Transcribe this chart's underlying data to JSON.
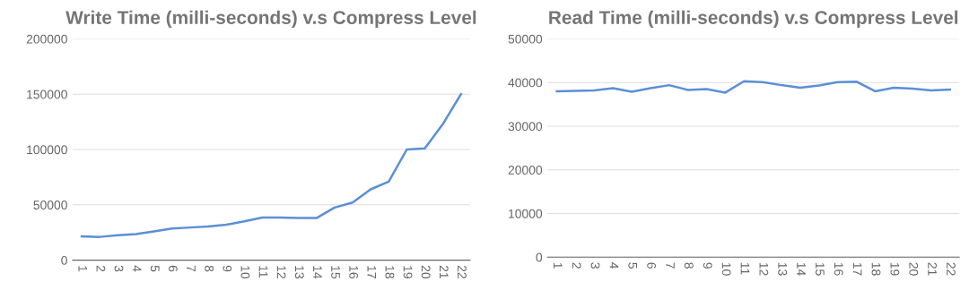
{
  "chart_data": [
    {
      "type": "line",
      "title": "Write Time (milli-seconds) v.s Compress Level",
      "categories": [
        "1",
        "2",
        "3",
        "4",
        "5",
        "6",
        "7",
        "8",
        "9",
        "10",
        "11",
        "12",
        "13",
        "14",
        "15",
        "16",
        "17",
        "18",
        "19",
        "20",
        "21",
        "22"
      ],
      "series": [
        {
          "color": "#5b8fd6",
          "values": [
            21500,
            21000,
            22500,
            23500,
            26000,
            28500,
            29500,
            30500,
            32000,
            35000,
            38500,
            38500,
            38000,
            38000,
            47500,
            52000,
            64000,
            71000,
            100000,
            101000,
            123000,
            150000
          ]
        }
      ],
      "ylim": [
        0,
        200000
      ],
      "yticks": [
        0,
        50000,
        100000,
        150000,
        200000
      ],
      "grid": "y",
      "legend": false
    },
    {
      "type": "line",
      "title": "Read Time (milli-seconds) v.s Compress Level",
      "categories": [
        "1",
        "2",
        "3",
        "4",
        "5",
        "6",
        "7",
        "8",
        "9",
        "10",
        "11",
        "12",
        "13",
        "14",
        "15",
        "16",
        "17",
        "18",
        "19",
        "20",
        "21",
        "22"
      ],
      "series": [
        {
          "color": "#5b8fd6",
          "values": [
            38000,
            38100,
            38200,
            38700,
            37900,
            38700,
            39400,
            38300,
            38500,
            37700,
            40300,
            40100,
            39400,
            38800,
            39300,
            40100,
            40200,
            38000,
            38800,
            38600,
            38200,
            38400
          ]
        }
      ],
      "ylim": [
        0,
        50000
      ],
      "yticks": [
        0,
        10000,
        20000,
        30000,
        40000,
        50000
      ],
      "grid": "y",
      "legend": false
    }
  ]
}
